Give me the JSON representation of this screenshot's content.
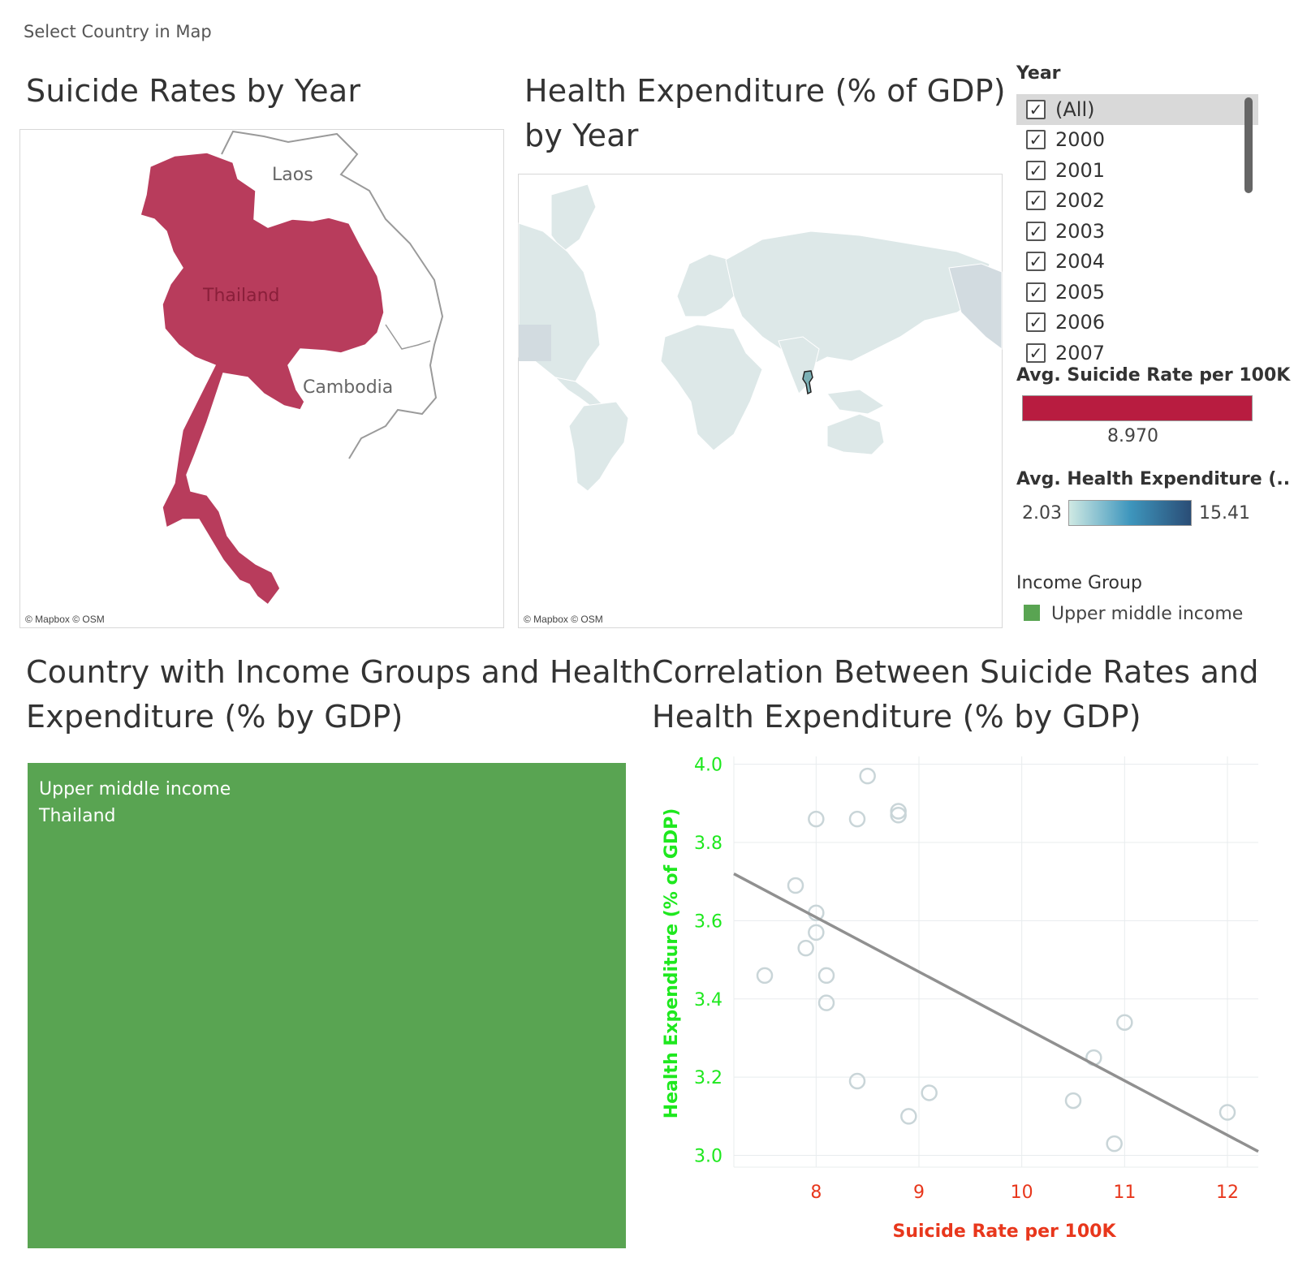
{
  "instruction": "Select Country in Map",
  "map1": {
    "title": "Suicide Rates by Year",
    "labels": {
      "country": "Thailand",
      "laos": "Laos",
      "cambodia": "Cambodia"
    },
    "attribution": "© Mapbox © OSM",
    "fill_color": "#b83c5c"
  },
  "map2": {
    "title_line1": "Health Expenditure (% of GDP)",
    "title_line2": "by Year",
    "attribution": "© Mapbox © OSM"
  },
  "year_filter": {
    "title": "Year",
    "items": [
      {
        "label": "(All)",
        "checked": true
      },
      {
        "label": "2000",
        "checked": true
      },
      {
        "label": "2001",
        "checked": true
      },
      {
        "label": "2002",
        "checked": true
      },
      {
        "label": "2003",
        "checked": true
      },
      {
        "label": "2004",
        "checked": true
      },
      {
        "label": "2005",
        "checked": true
      },
      {
        "label": "2006",
        "checked": true
      },
      {
        "label": "2007",
        "checked": true
      }
    ]
  },
  "legend_suicide": {
    "title": "Avg. Suicide Rate per 100K",
    "value": "8.970",
    "color": "#b81c40"
  },
  "legend_health": {
    "title": "Avg. Health Expenditure (..",
    "min": "2.03",
    "max": "15.41"
  },
  "legend_income": {
    "title": "Income Group",
    "item": "Upper middle income",
    "color": "#59a452"
  },
  "treemap": {
    "title_line1": "Country with Income Groups and Health",
    "title_line2": "Expenditure (% by GDP)",
    "line1": "Upper middle income",
    "line2": "Thailand"
  },
  "scatter": {
    "title_line1": "Correlation Between Suicide Rates and",
    "title_line2": "Health Expenditure (% by GDP)"
  },
  "chart_data": {
    "type": "scatter",
    "title": "Correlation Between Suicide Rates and Health Expenditure (% by GDP)",
    "xlabel": "Suicide Rate per 100K",
    "ylabel": "Health Expenditure (% of GDP)",
    "xlim": [
      7.2,
      12.3
    ],
    "ylim": [
      2.97,
      4.02
    ],
    "x_ticks": [
      "8",
      "9",
      "10",
      "11",
      "12"
    ],
    "y_ticks": [
      "3.0",
      "3.2",
      "3.4",
      "3.6",
      "3.8",
      "4.0"
    ],
    "x_tick_values": [
      8,
      9,
      10,
      11,
      12
    ],
    "y_tick_values": [
      3.0,
      3.2,
      3.4,
      3.6,
      3.8,
      4.0
    ],
    "points": [
      {
        "x": 8.5,
        "y": 3.97
      },
      {
        "x": 8.0,
        "y": 3.86
      },
      {
        "x": 8.4,
        "y": 3.86
      },
      {
        "x": 8.8,
        "y": 3.88
      },
      {
        "x": 8.8,
        "y": 3.87
      },
      {
        "x": 7.8,
        "y": 3.69
      },
      {
        "x": 8.0,
        "y": 3.62
      },
      {
        "x": 8.0,
        "y": 3.57
      },
      {
        "x": 7.9,
        "y": 3.53
      },
      {
        "x": 7.5,
        "y": 3.46
      },
      {
        "x": 8.1,
        "y": 3.46
      },
      {
        "x": 8.1,
        "y": 3.39
      },
      {
        "x": 8.4,
        "y": 3.19
      },
      {
        "x": 9.1,
        "y": 3.16
      },
      {
        "x": 8.9,
        "y": 3.1
      },
      {
        "x": 10.5,
        "y": 3.14
      },
      {
        "x": 10.7,
        "y": 3.25
      },
      {
        "x": 11.0,
        "y": 3.34
      },
      {
        "x": 10.9,
        "y": 3.03
      },
      {
        "x": 12.0,
        "y": 3.11
      }
    ],
    "trend_line": {
      "x": [
        7.2,
        12.3
      ],
      "y": [
        3.72,
        3.01
      ]
    },
    "grid": true,
    "axis_colors": {
      "x": "#e8371c",
      "y": "#1ee81e"
    }
  }
}
